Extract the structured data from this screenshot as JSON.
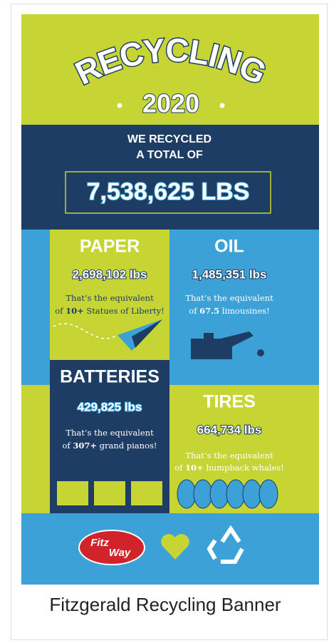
{
  "header": {
    "title": "RECYCLING",
    "year": "2020"
  },
  "total": {
    "line1": "WE RECYCLED",
    "line2": "A TOTAL OF",
    "value": "7,538,625 LBS"
  },
  "sections": [
    {
      "name": "PAPER",
      "amount": "2,698,102 lbs",
      "line1": "That’s the equivalent",
      "prefix": "of ",
      "bold": "10+",
      "rest": " Statues of Liberty!"
    },
    {
      "name": "OIL",
      "amount": "1,485,351 lbs",
      "line1": "That’s the equivalent",
      "prefix": "of ",
      "bold": "67.5",
      "rest": " limousines!"
    },
    {
      "name": "BATTERIES",
      "amount": "429,825 lbs",
      "line1": "That’s the equivalent",
      "prefix": "of ",
      "bold": "307+",
      "rest": " grand pianos!"
    },
    {
      "name": "TIRES",
      "amount": "664,734 lbs",
      "line1": "That’s the equivalent",
      "prefix": "of ",
      "bold": "10+",
      "rest": " humpback whales!"
    }
  ],
  "logo": {
    "part1": "Fitz",
    "part2": "Way"
  },
  "caption": "Fitzgerald Recycling Banner"
}
